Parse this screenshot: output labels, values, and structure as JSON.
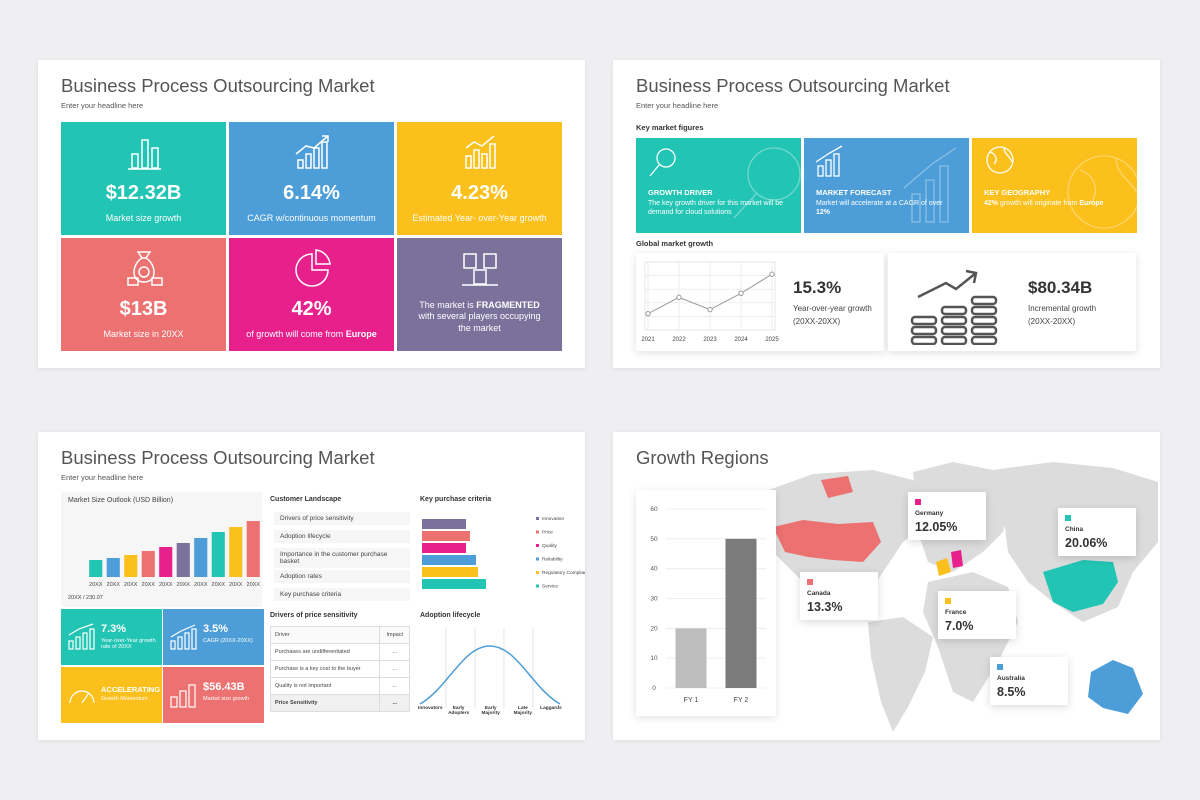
{
  "slides": [
    {
      "title": "Business Process Outsourcing Market",
      "subtitle": "Enter your headline here",
      "tiles": [
        {
          "value": "$12.32B",
          "label": "Market size growth",
          "color": "#22c4b4"
        },
        {
          "value": "6.14%",
          "label": "CAGR w/continuous momentum",
          "color": "#4d9ed8"
        },
        {
          "value": "4.23%",
          "label": "Estimated Year- over-Year growth",
          "color": "#fbc01b"
        },
        {
          "value": "$13B",
          "label": "Market size in 20XX",
          "color": "#ec7171"
        },
        {
          "value": "42%",
          "label": [
            "of growth will come from ",
            "Europe"
          ],
          "color": "#e8208c"
        },
        {
          "label": [
            "The market is ",
            "FRAGMENTED",
            " with several players occupying the market"
          ],
          "color": "#7b729c"
        }
      ]
    },
    {
      "title": "Business Process Outsourcing Market",
      "subtitle": "Enter your headline here",
      "section1": "Key market figures",
      "cards": [
        {
          "heading": "GROWTH DRIVER",
          "text": [
            "The key growth driver for this market will be demand for cloud solutions"
          ],
          "color": "#22c4b4"
        },
        {
          "heading": "MARKET FORECAST",
          "text": [
            "Market will accelerate at a CAGR of over ",
            "12%"
          ],
          "color": "#4d9ed8"
        },
        {
          "heading": "KEY GEOGRAPHY",
          "text": [
            "42%",
            " growth will originate from ",
            "Europe"
          ],
          "color": "#fbc01b"
        }
      ],
      "section2": "Global market growth",
      "chart_data": {
        "type": "line",
        "x": [
          2021,
          2022,
          2023,
          2024,
          2025
        ],
        "values": [
          12,
          24,
          15,
          27,
          41
        ],
        "ylim": [
          0,
          50
        ],
        "color": "#9a9a9a"
      },
      "stats": [
        {
          "value": "15.3%",
          "label": "Year-over-year growth (20XX-20XX)"
        },
        {
          "value": "$80.34B",
          "label": "Incremental growth (20XX-20XX)"
        }
      ]
    },
    {
      "title": "Business Process Outsourcing Market",
      "subtitle": "Enter your headline here",
      "outlook": {
        "title": "Market Size Outlook (USD Billion)",
        "chart_data": {
          "type": "bar",
          "categories": [
            "20XX",
            "20XX",
            "20XX",
            "20XX",
            "20XX",
            "20XX",
            "20XX",
            "20XX",
            "20XX",
            "20XX"
          ],
          "values": [
            17,
            19,
            22,
            26,
            30,
            34,
            39,
            45,
            50,
            56
          ],
          "colors": [
            "#22c4b4",
            "#4d9ed8",
            "#fbc01b",
            "#ec7171",
            "#e8208c",
            "#7b729c",
            "#4d9ed8",
            "#22c4b4",
            "#fbc01b",
            "#ec7171"
          ],
          "ylim": [
            0,
            60
          ]
        },
        "caption": "20XX / 230.07"
      },
      "metrics": [
        {
          "value": "7.3%",
          "label": "Year-over-Year growth rate of 20XX",
          "color": "#22c4b4"
        },
        {
          "value": "3.5%",
          "label": "CAGR (20XX-20XX)",
          "color": "#4d9ed8"
        },
        {
          "value": "ACCELERATING",
          "label": "Growth Momentum",
          "color": "#fbc01b"
        },
        {
          "value": "$56.43B",
          "label": "Market size growth",
          "color": "#ec7171"
        }
      ],
      "landscape": {
        "title": "Customer Landscape",
        "items": [
          "Drivers of price sensitivity",
          "Adoption lifecycle",
          "Importance in the customer purchase basket",
          "Adoption rates",
          "Key purchase criteria"
        ]
      },
      "criteria": {
        "title": "Key purchase criteria",
        "chart_data": {
          "type": "hbar",
          "xlim": [
            0,
            70
          ],
          "series": [
            {
              "name": "Innovation",
              "color": "#7b729c",
              "values": [
                44
              ]
            },
            {
              "name": "Price",
              "color": "#ec7171",
              "values": [
                48
              ]
            },
            {
              "name": "Quality",
              "color": "#e8208c",
              "values": [
                44
              ]
            },
            {
              "name": "Reliability",
              "color": "#4d9ed8",
              "values": [
                54
              ]
            },
            {
              "name": "Regulatory Compliance",
              "color": "#fbc01b",
              "values": [
                56
              ]
            },
            {
              "name": "Service",
              "color": "#22c4b4",
              "values": [
                64
              ]
            }
          ]
        }
      },
      "drivers": {
        "title": "Drivers of price sensitivity",
        "header": [
          "Driver",
          "Impact"
        ],
        "rows": [
          [
            "Purchases are undifferentiated",
            "..."
          ],
          [
            "Purchase is a key cost to the buyer",
            "..."
          ],
          [
            "Quality is not important",
            "..."
          ],
          [
            "Price Sensitivity",
            "..."
          ]
        ]
      },
      "adoption": {
        "title": "Adoption lifecycle",
        "stages": [
          "Innovators",
          "Early Adopters",
          "Early Majority",
          "Late Majority",
          "Laggards"
        ]
      }
    },
    {
      "title": "Growth Regions",
      "chart_data": {
        "type": "bar",
        "categories": [
          "FY 1",
          "FY 2"
        ],
        "values": [
          20,
          50
        ],
        "colors": [
          "#bdbdbd",
          "#7b7b7b"
        ],
        "ylim": [
          0,
          60
        ],
        "yticks": [
          0,
          10,
          20,
          30,
          40,
          50,
          60
        ],
        "grid": true
      },
      "regions": [
        {
          "name": "Germany",
          "value": "12.05%",
          "color": "#e8208c"
        },
        {
          "name": "China",
          "value": "20.06%",
          "color": "#22c4b4"
        },
        {
          "name": "Canada",
          "value": "13.3%",
          "color": "#ec7171"
        },
        {
          "name": "France",
          "value": "7.0%",
          "color": "#fbc01b"
        },
        {
          "name": "Australia",
          "value": "8.5%",
          "color": "#4d9ed8"
        }
      ]
    }
  ]
}
